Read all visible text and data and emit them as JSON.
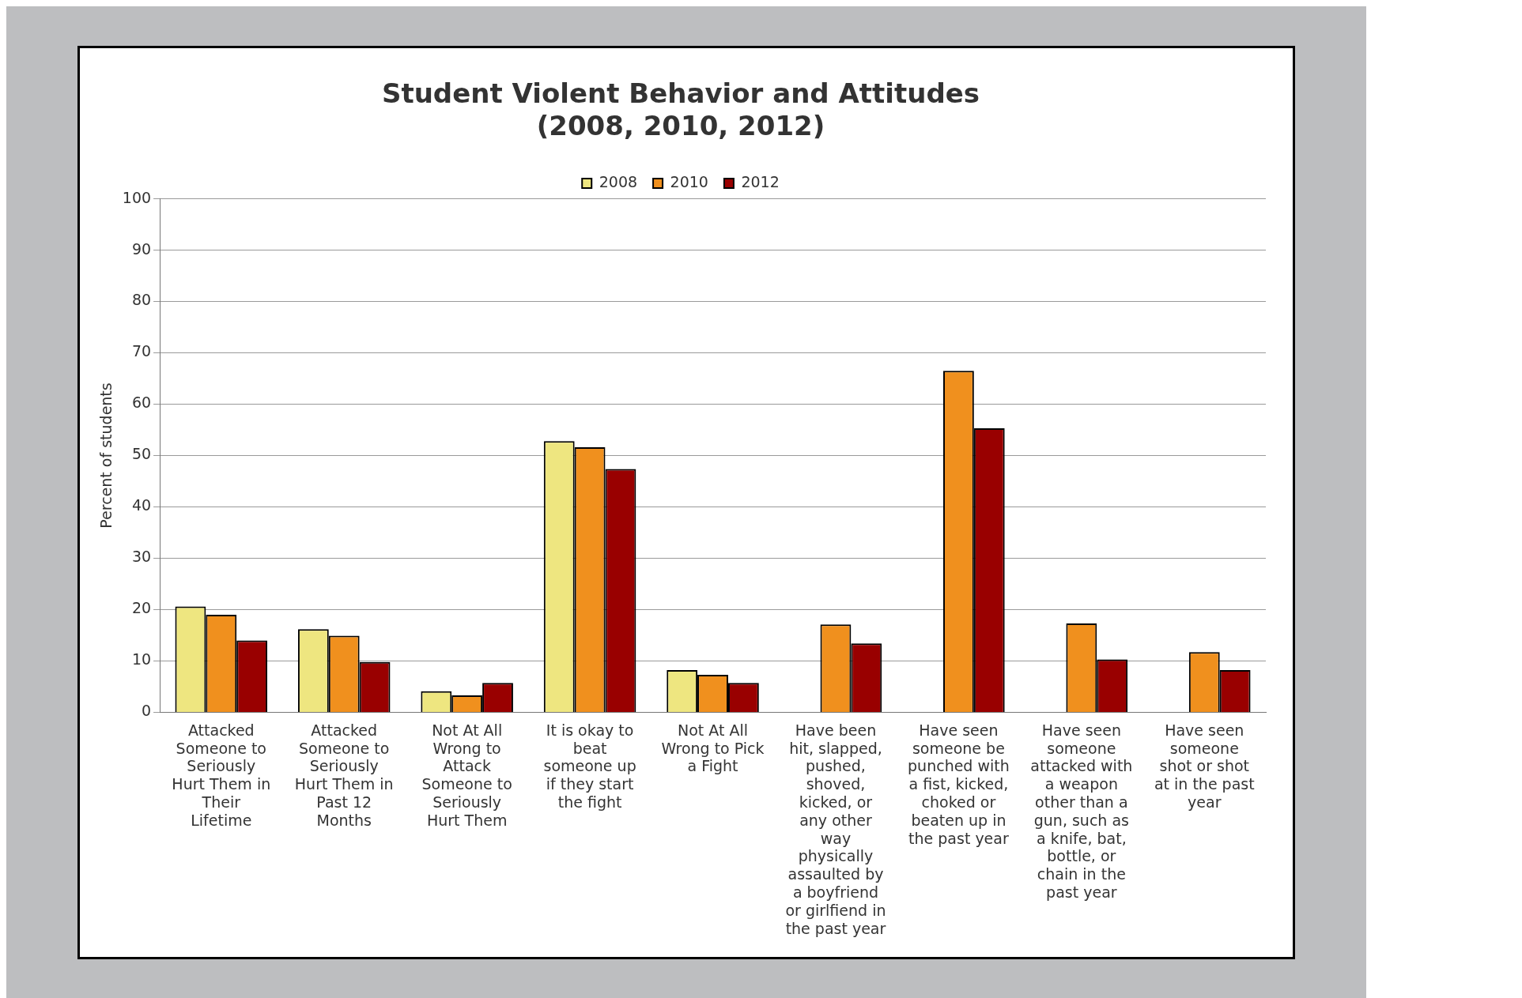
{
  "chart_data": {
    "type": "bar",
    "title": "Student Violent Behavior and Attitudes\n(2008, 2010, 2012)",
    "ylabel": "Percent of students",
    "categories": [
      "Attacked Someone to Seriously Hurt Them in Their Lifetime",
      "Attacked Someone to Seriously Hurt Them in Past 12 Months",
      "Not At All Wrong to Attack Someone to Seriously Hurt Them",
      "It is okay to beat someone up if they start the fight",
      "Not At All Wrong to Pick a Fight",
      "Have been hit, slapped, pushed, shoved, kicked, or any other way physically assaulted by a boyfriend or girlfiend in the past year",
      "Have seen someone be punched with a fist, kicked, choked or beaten up in the past year",
      "Have seen someone attacked with a weapon other than a gun, such as a knife, bat, bottle, or chain in the past year",
      "Have seen someone shot or shot at in the past year"
    ],
    "series": [
      {
        "name": "2008",
        "color": "#eee680",
        "values": [
          20.6,
          16.2,
          4.1,
          52.8,
          8.2,
          null,
          null,
          null,
          null
        ]
      },
      {
        "name": "2010",
        "color": "#f0901e",
        "values": [
          19.0,
          14.9,
          3.3,
          51.6,
          7.3,
          17.1,
          66.5,
          17.3,
          11.7
        ]
      },
      {
        "name": "2012",
        "color": "#990000",
        "values": [
          14.0,
          9.8,
          5.7,
          47.4,
          5.7,
          13.4,
          55.3,
          10.3,
          8.2
        ]
      }
    ],
    "ylim": [
      0,
      100
    ],
    "yticks": [
      0,
      10,
      20,
      30,
      40,
      50,
      60,
      70,
      80,
      90,
      100
    ],
    "grid": "y",
    "legend": "top"
  }
}
